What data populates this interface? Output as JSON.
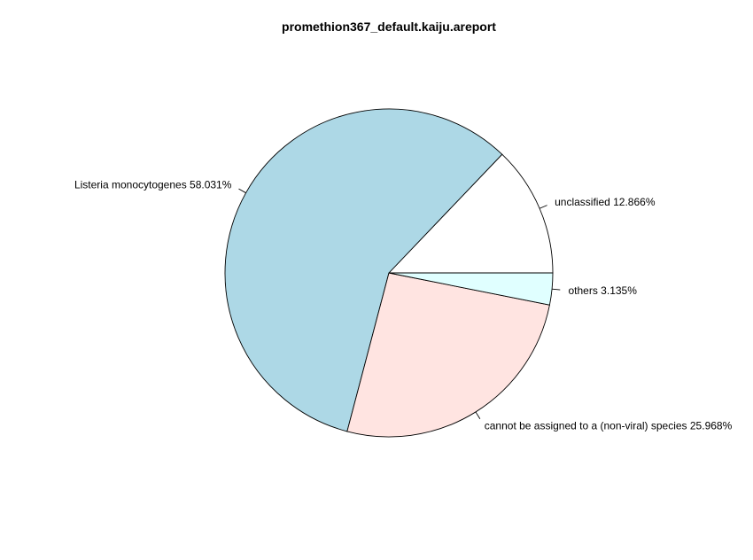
{
  "chart_data": {
    "type": "pie",
    "title": "promethion367_default.kaiju.areport",
    "direction": "counterclockwise",
    "start_angle_deg": 0,
    "slices": [
      {
        "label": "unclassified 12.866%",
        "value": 12.866,
        "color": "#ffffff"
      },
      {
        "label": "Listeria monocytogenes 58.031%",
        "value": 58.031,
        "color": "#add8e6"
      },
      {
        "label": "cannot be assigned to a (non-viral) species 25.968%",
        "value": 25.968,
        "color": "#ffe4e1"
      },
      {
        "label": "others 3.135%",
        "value": 3.135,
        "color": "#e0ffff"
      }
    ]
  }
}
